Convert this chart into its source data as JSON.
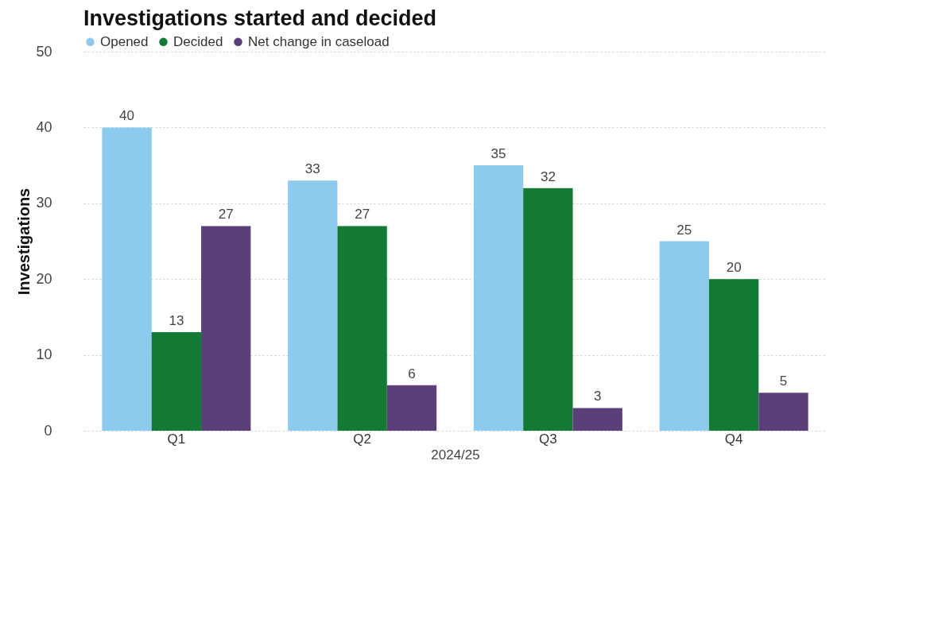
{
  "chart_data": {
    "type": "bar",
    "title": "Investigations started and decided",
    "xlabel": "2024/25",
    "ylabel": "Investigations",
    "categories": [
      "Q1",
      "Q2",
      "Q3",
      "Q4"
    ],
    "series": [
      {
        "name": "Opened",
        "color": "#8ccbee",
        "values": [
          40,
          33,
          35,
          25
        ]
      },
      {
        "name": "Decided",
        "color": "#127a34",
        "values": [
          13,
          27,
          32,
          20
        ]
      },
      {
        "name": "Net change in caseload",
        "color": "#5b3f78",
        "values": [
          27,
          6,
          3,
          5
        ]
      }
    ],
    "ylim": [
      0,
      50
    ],
    "yticks": [
      0,
      10,
      20,
      30,
      40,
      50
    ],
    "grid": "y",
    "legend": "top left",
    "data_labels": true
  }
}
